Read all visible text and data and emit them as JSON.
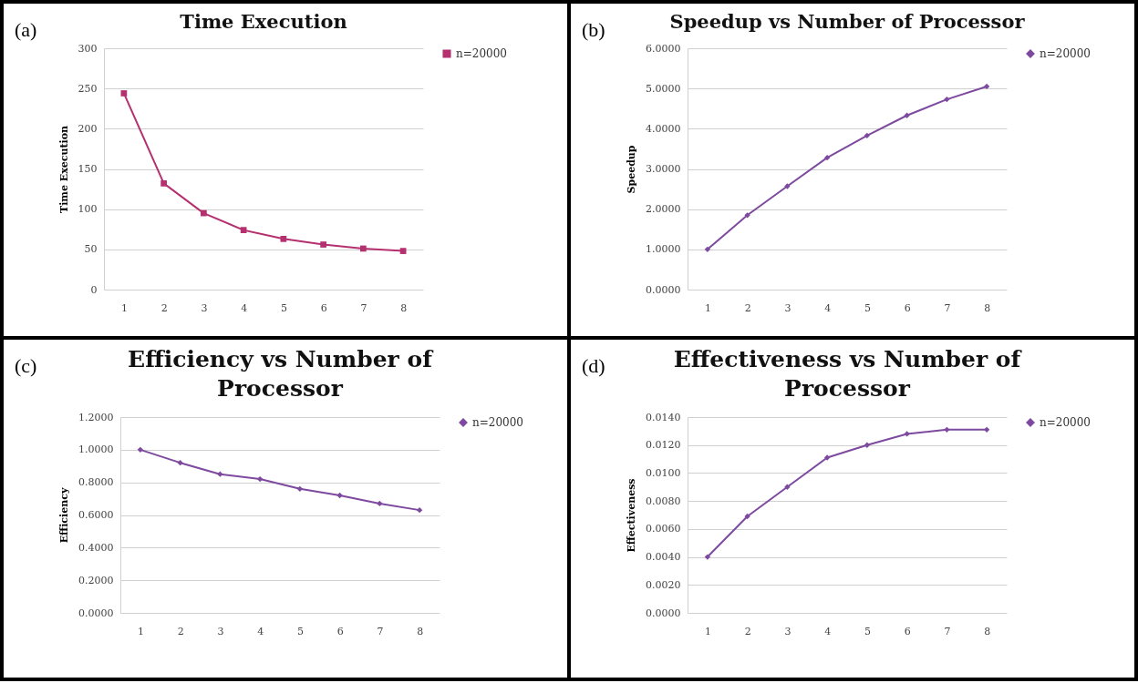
{
  "chart_data": [
    {
      "type": "line",
      "title": "Time Execution",
      "ylabel": "Time Execution",
      "annotations": [
        "(a)"
      ],
      "categories": [
        "1",
        "2",
        "3",
        "4",
        "5",
        "6",
        "7",
        "8"
      ],
      "series": [
        {
          "name": "n=20000",
          "color": "#b5306f",
          "values": [
            244,
            132,
            95,
            74,
            63,
            56,
            51,
            48
          ]
        }
      ],
      "ylim": [
        0,
        300
      ],
      "yticks": [
        0,
        50,
        100,
        150,
        200,
        250,
        300
      ],
      "grid": "y",
      "legend": "right",
      "marker": "square"
    },
    {
      "type": "line",
      "title": "Speedup vs Number of Processor",
      "ylabel": "Speedup",
      "annotations": [
        "(b)"
      ],
      "categories": [
        "1",
        "2",
        "3",
        "4",
        "5",
        "6",
        "7",
        "8"
      ],
      "series": [
        {
          "name": "n=20000",
          "color": "#7d4a9f",
          "values": [
            1.0,
            1.85,
            2.57,
            3.28,
            3.83,
            4.33,
            4.73,
            5.05
          ]
        }
      ],
      "ylim": [
        0,
        6
      ],
      "yticks": [
        {
          "value": 0,
          "label": "0.0000"
        },
        {
          "value": 1,
          "label": "1.0000"
        },
        {
          "value": 2,
          "label": "2.0000"
        },
        {
          "value": 3,
          "label": "3.0000"
        },
        {
          "value": 4,
          "label": "4.0000"
        },
        {
          "value": 5,
          "label": "5.0000"
        },
        {
          "value": 6,
          "label": "6.0000"
        }
      ],
      "grid": "y",
      "legend": "right",
      "marker": "diamond"
    },
    {
      "type": "line",
      "title": "Efficiency vs Number of Processor",
      "ylabel": "Efficiency",
      "annotations": [
        "(c)"
      ],
      "categories": [
        "1",
        "2",
        "3",
        "4",
        "5",
        "6",
        "7",
        "8"
      ],
      "series": [
        {
          "name": "n=20000",
          "color": "#7d4a9f",
          "values": [
            1.0,
            0.92,
            0.85,
            0.82,
            0.76,
            0.72,
            0.67,
            0.63
          ]
        }
      ],
      "ylim": [
        0,
        1.2
      ],
      "yticks": [
        {
          "value": 0,
          "label": "0.0000"
        },
        {
          "value": 0.2,
          "label": "0.2000"
        },
        {
          "value": 0.4,
          "label": "0.4000"
        },
        {
          "value": 0.6,
          "label": "0.6000"
        },
        {
          "value": 0.8,
          "label": "0.8000"
        },
        {
          "value": 1,
          "label": "1.0000"
        },
        {
          "value": 1.2,
          "label": "1.2000"
        }
      ],
      "grid": "y",
      "legend": "right",
      "marker": "diamond"
    },
    {
      "type": "line",
      "title": "Effectiveness vs Number of Processor",
      "ylabel": "Effectiveness",
      "annotations": [
        "(d)"
      ],
      "categories": [
        "1",
        "2",
        "3",
        "4",
        "5",
        "6",
        "7",
        "8"
      ],
      "series": [
        {
          "name": "n=20000",
          "color": "#7d4a9f",
          "values": [
            0.004,
            0.0069,
            0.009,
            0.0111,
            0.012,
            0.0128,
            0.0131,
            0.0131
          ]
        }
      ],
      "ylim": [
        0,
        0.014
      ],
      "yticks": [
        {
          "value": 0,
          "label": "0.0000"
        },
        {
          "value": 0.002,
          "label": "0.0020"
        },
        {
          "value": 0.004,
          "label": "0.0040"
        },
        {
          "value": 0.006,
          "label": "0.0060"
        },
        {
          "value": 0.008,
          "label": "0.0080"
        },
        {
          "value": 0.01,
          "label": "0.0100"
        },
        {
          "value": 0.012,
          "label": "0.0120"
        },
        {
          "value": 0.014,
          "label": "0.0140"
        }
      ],
      "grid": "y",
      "legend": "right",
      "marker": "diamond"
    }
  ]
}
